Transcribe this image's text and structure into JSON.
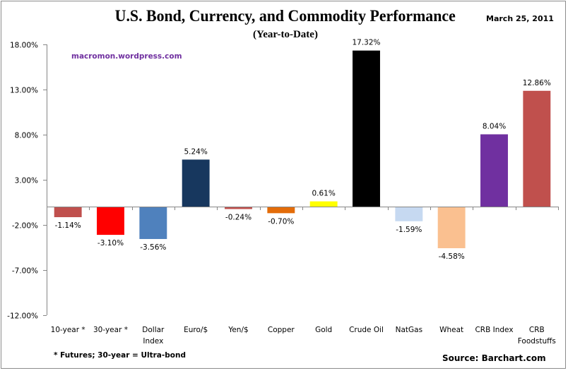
{
  "header": {
    "title": "U.S. Bond, Currency, and Commodity Performance",
    "subtitle": "(Year-to-Date)",
    "date": "March 25, 2011"
  },
  "watermark": "macromon.wordpress.com",
  "footnote": "* Futures; 30-year = Ultra-bond",
  "source": "Source: Barchart.com",
  "chart_data": {
    "type": "bar",
    "title": "U.S. Bond, Currency, and Commodity Performance",
    "subtitle": "(Year-to-Date)",
    "xlabel": "",
    "ylabel": "",
    "ylim": [
      -12,
      18
    ],
    "yticks": [
      18,
      13,
      8,
      3,
      -2,
      -7,
      -12
    ],
    "ytick_labels": [
      "18.00%",
      "13.00%",
      "8.00%",
      "3.00%",
      "-2.00%",
      "-7.00%",
      "-12.00%"
    ],
    "grid": false,
    "legend": "none",
    "categories": [
      [
        "10-year *"
      ],
      [
        "30-year *"
      ],
      [
        "Dollar",
        "Index"
      ],
      [
        "Euro/$"
      ],
      [
        "Yen/$"
      ],
      [
        "Copper"
      ],
      [
        "Gold"
      ],
      [
        "Crude Oil"
      ],
      [
        "NatGas"
      ],
      [
        "Wheat"
      ],
      [
        "CRB Index"
      ],
      [
        "CRB",
        "Foodstuffs"
      ]
    ],
    "values": [
      -1.14,
      -3.1,
      -3.56,
      5.24,
      -0.24,
      -0.7,
      0.61,
      17.32,
      -1.59,
      -4.58,
      8.04,
      12.86
    ],
    "data_labels": [
      "-1.14%",
      "-3.10%",
      "-3.56%",
      "5.24%",
      "-0.24%",
      "-0.70%",
      "0.61%",
      "17.32%",
      "-1.59%",
      "-4.58%",
      "8.04%",
      "12.86%"
    ],
    "colors": [
      "#c0504d",
      "#ff0000",
      "#4f81bd",
      "#17375e",
      "#c0504d",
      "#e36c09",
      "#ffff00",
      "#000000",
      "#c6d9f1",
      "#fac090",
      "#7030a0",
      "#c0504d"
    ]
  }
}
